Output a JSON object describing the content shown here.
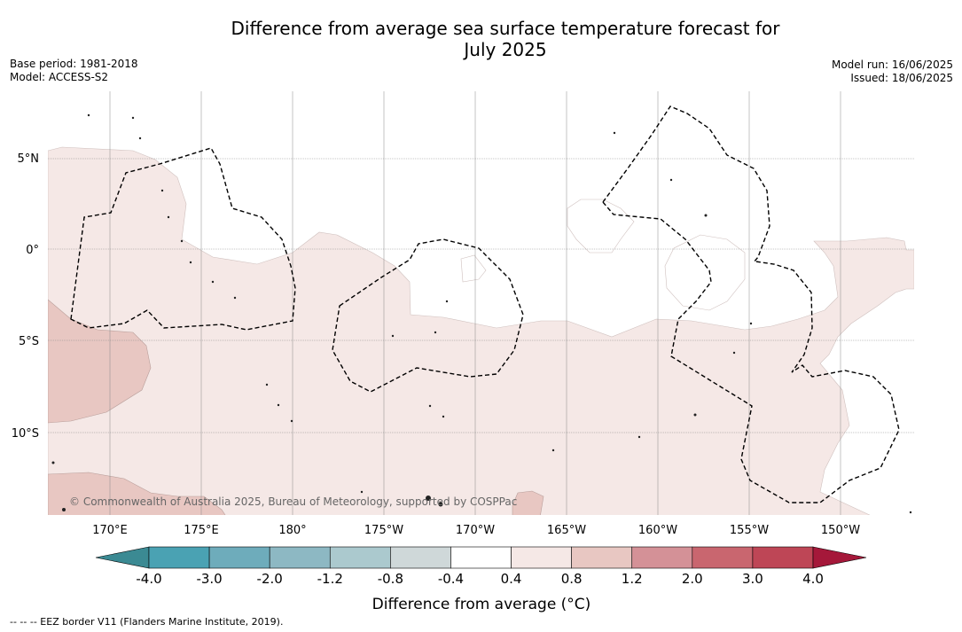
{
  "title_line1": "Difference from average sea surface temperature forecast for",
  "title_line2": "July 2025",
  "base_period": "Base period: 1981-2018",
  "model": "Model: ACCESS-S2",
  "model_run": "Model run: 16/06/2025",
  "issued": "Issued: 18/06/2025",
  "lat_labels": [
    "5°N",
    "0°",
    "5°S",
    "10°S"
  ],
  "lon_labels": [
    "170°E",
    "175°E",
    "180°",
    "175°W",
    "170°W",
    "165°W",
    "160°W",
    "155°W",
    "150°W"
  ],
  "colorbar": {
    "ticks": [
      "-4.0",
      "-3.0",
      "-2.0",
      "-1.2",
      "-0.8",
      "-0.4",
      "0.4",
      "0.8",
      "1.2",
      "2.0",
      "3.0",
      "4.0"
    ],
    "colors": [
      "#3b8a93",
      "#4aa2b3",
      "#6eacbb",
      "#8db8c3",
      "#abc9ce",
      "#cfd8d9",
      "#ffffff",
      "#f5e8e6",
      "#e8c7c2",
      "#d49197",
      "#c9666f",
      "#be4656",
      "#a5183a"
    ],
    "title": "Difference from average (°C)"
  },
  "colors": {
    "light_anomaly": "#f5e8e6",
    "moderate_anomaly": "#e8c7c2"
  },
  "copyright": "© Commonwealth of Australia 2025, Bureau of Meteorology, supported by COSPPac",
  "footnote": "--  --  -- EEZ border V11 (Flanders Marine Institute, 2019)."
}
